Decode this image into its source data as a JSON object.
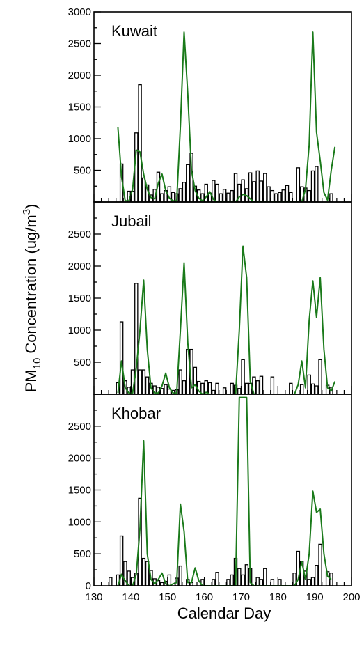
{
  "chart_data": {
    "type": "bar",
    "ylabel": {
      "main": "PM",
      "sub": "10",
      "rest": " Concentration  (ug/m",
      "sup": "3",
      "close": ")"
    },
    "xlabel": "Calendar Day",
    "xlim": [
      130,
      200
    ],
    "xticks": [
      "130",
      "140",
      "150",
      "160",
      "170",
      "180",
      "190",
      "200"
    ],
    "bar_color": "#000000",
    "line_color": "#1a7a1a",
    "panels": [
      {
        "title": "Kuwait",
        "ylim": [
          0,
          3000
        ],
        "yticks": [
          500,
          1000,
          1500,
          2000,
          2500,
          3000
        ],
        "bars": [
          {
            "x": 137.5,
            "y": 600
          },
          {
            "x": 139.5,
            "y": 170
          },
          {
            "x": 140.5,
            "y": 170
          },
          {
            "x": 141.5,
            "y": 1090
          },
          {
            "x": 142.5,
            "y": 1850
          },
          {
            "x": 143.5,
            "y": 380
          },
          {
            "x": 144.5,
            "y": 270
          },
          {
            "x": 145.5,
            "y": 110
          },
          {
            "x": 146.5,
            "y": 200
          },
          {
            "x": 147.5,
            "y": 470
          },
          {
            "x": 148.5,
            "y": 130
          },
          {
            "x": 149.5,
            "y": 180
          },
          {
            "x": 150.5,
            "y": 240
          },
          {
            "x": 151.5,
            "y": 150
          },
          {
            "x": 152.5,
            "y": 130
          },
          {
            "x": 153.5,
            "y": 210
          },
          {
            "x": 154.5,
            "y": 310
          },
          {
            "x": 155.5,
            "y": 590
          },
          {
            "x": 156.5,
            "y": 770
          },
          {
            "x": 157.5,
            "y": 250
          },
          {
            "x": 158.5,
            "y": 190
          },
          {
            "x": 159.5,
            "y": 130
          },
          {
            "x": 160.5,
            "y": 280
          },
          {
            "x": 161.5,
            "y": 140
          },
          {
            "x": 162.5,
            "y": 340
          },
          {
            "x": 163.5,
            "y": 280
          },
          {
            "x": 164.5,
            "y": 130
          },
          {
            "x": 165.5,
            "y": 200
          },
          {
            "x": 166.5,
            "y": 140
          },
          {
            "x": 167.5,
            "y": 180
          },
          {
            "x": 168.5,
            "y": 450
          },
          {
            "x": 169.5,
            "y": 280
          },
          {
            "x": 170.5,
            "y": 350
          },
          {
            "x": 171.5,
            "y": 210
          },
          {
            "x": 172.5,
            "y": 460
          },
          {
            "x": 173.5,
            "y": 320
          },
          {
            "x": 174.5,
            "y": 490
          },
          {
            "x": 175.5,
            "y": 330
          },
          {
            "x": 176.5,
            "y": 450
          },
          {
            "x": 177.5,
            "y": 240
          },
          {
            "x": 178.5,
            "y": 180
          },
          {
            "x": 179.5,
            "y": 130
          },
          {
            "x": 180.5,
            "y": 150
          },
          {
            "x": 181.5,
            "y": 190
          },
          {
            "x": 182.5,
            "y": 260
          },
          {
            "x": 183.5,
            "y": 150
          },
          {
            "x": 185.5,
            "y": 540
          },
          {
            "x": 186.5,
            "y": 240
          },
          {
            "x": 187.5,
            "y": 220
          },
          {
            "x": 188.5,
            "y": 180
          },
          {
            "x": 189.5,
            "y": 490
          },
          {
            "x": 190.5,
            "y": 560
          },
          {
            "x": 194.5,
            "y": 130
          }
        ],
        "line": {
          "x": [
            136.5,
            137.5,
            138.5,
            139.5,
            140.5,
            141.5,
            142.5,
            143.5,
            144.5,
            145.5,
            146.5,
            147.5,
            148.5,
            149.5,
            150.5,
            151.5,
            152.5,
            153.5,
            154.5,
            155.5,
            156.5,
            157.5,
            158.5,
            159.5,
            160.5,
            161.5,
            162.5,
            163.5,
            168.5,
            169.5,
            170.5,
            171.5,
            172.5,
            173.5,
            186.5,
            187.5,
            188.5,
            189.5,
            190.5,
            191.5,
            192.5,
            193.5,
            194.5,
            195.5
          ],
          "y": [
            1180,
            400,
            20,
            20,
            200,
            820,
            790,
            440,
            200,
            70,
            50,
            300,
            440,
            180,
            60,
            20,
            20,
            1200,
            2680,
            1700,
            500,
            180,
            60,
            20,
            80,
            160,
            40,
            0,
            0,
            80,
            120,
            100,
            50,
            0,
            0,
            200,
            900,
            2680,
            1100,
            650,
            150,
            30,
            500,
            870
          ]
        }
      },
      {
        "title": "Jubail",
        "ylim": [
          0,
          3000
        ],
        "yticks": [
          500,
          1000,
          1500,
          2000,
          2500
        ],
        "bars": [
          {
            "x": 136.5,
            "y": 180
          },
          {
            "x": 137.5,
            "y": 1130
          },
          {
            "x": 138.5,
            "y": 210
          },
          {
            "x": 139.5,
            "y": 110
          },
          {
            "x": 140.5,
            "y": 380
          },
          {
            "x": 141.5,
            "y": 1730
          },
          {
            "x": 142.5,
            "y": 380
          },
          {
            "x": 143.5,
            "y": 380
          },
          {
            "x": 144.5,
            "y": 270
          },
          {
            "x": 145.5,
            "y": 170
          },
          {
            "x": 146.5,
            "y": 130
          },
          {
            "x": 147.5,
            "y": 110
          },
          {
            "x": 148.5,
            "y": 90
          },
          {
            "x": 149.5,
            "y": 150
          },
          {
            "x": 150.5,
            "y": 80
          },
          {
            "x": 151.5,
            "y": 60
          },
          {
            "x": 152.5,
            "y": 70
          },
          {
            "x": 153.5,
            "y": 380
          },
          {
            "x": 154.5,
            "y": 210
          },
          {
            "x": 155.5,
            "y": 700
          },
          {
            "x": 156.5,
            "y": 700
          },
          {
            "x": 157.5,
            "y": 420
          },
          {
            "x": 158.5,
            "y": 200
          },
          {
            "x": 159.5,
            "y": 170
          },
          {
            "x": 160.5,
            "y": 210
          },
          {
            "x": 161.5,
            "y": 180
          },
          {
            "x": 162.5,
            "y": 60
          },
          {
            "x": 163.5,
            "y": 170
          },
          {
            "x": 165.5,
            "y": 100
          },
          {
            "x": 167.5,
            "y": 170
          },
          {
            "x": 168.5,
            "y": 140
          },
          {
            "x": 169.5,
            "y": 90
          },
          {
            "x": 170.5,
            "y": 540
          },
          {
            "x": 171.5,
            "y": 170
          },
          {
            "x": 172.5,
            "y": 170
          },
          {
            "x": 173.5,
            "y": 270
          },
          {
            "x": 174.5,
            "y": 210
          },
          {
            "x": 175.5,
            "y": 280
          },
          {
            "x": 178.5,
            "y": 270
          },
          {
            "x": 183.5,
            "y": 170
          },
          {
            "x": 186.5,
            "y": 150
          },
          {
            "x": 188.5,
            "y": 300
          },
          {
            "x": 189.5,
            "y": 160
          },
          {
            "x": 190.5,
            "y": 130
          },
          {
            "x": 191.5,
            "y": 540
          },
          {
            "x": 193.5,
            "y": 140
          },
          {
            "x": 194.5,
            "y": 110
          }
        ],
        "line": {
          "x": [
            136.5,
            137.5,
            138.5,
            139.5,
            140.5,
            141.5,
            142.5,
            143.5,
            144.5,
            145.5,
            146.5,
            147.5,
            148.5,
            149.5,
            150.5,
            151.5,
            152.5,
            153.5,
            154.5,
            155.5,
            156.5,
            157.5,
            158.5,
            159.5,
            160.5,
            161.5,
            168.5,
            169.5,
            170.5,
            171.5,
            172.5,
            173.5,
            184.5,
            185.5,
            186.5,
            187.5,
            188.5,
            189.5,
            190.5,
            191.5,
            192.5,
            193.5,
            194.5,
            195.5
          ],
          "y": [
            20,
            520,
            100,
            20,
            20,
            400,
            1000,
            1780,
            700,
            100,
            20,
            20,
            130,
            330,
            100,
            20,
            20,
            1000,
            2050,
            800,
            100,
            150,
            50,
            0,
            30,
            0,
            0,
            1000,
            2310,
            1820,
            200,
            0,
            0,
            150,
            520,
            100,
            1150,
            1770,
            1200,
            1820,
            700,
            100,
            50,
            200
          ]
        }
      },
      {
        "title": "Khobar",
        "ylim": [
          0,
          3000
        ],
        "yticks": [
          0,
          500,
          1000,
          1500,
          2000,
          2500
        ],
        "bars": [
          {
            "x": 134.5,
            "y": 130
          },
          {
            "x": 136.5,
            "y": 170
          },
          {
            "x": 137.5,
            "y": 780
          },
          {
            "x": 138.5,
            "y": 380
          },
          {
            "x": 139.5,
            "y": 230
          },
          {
            "x": 140.5,
            "y": 130
          },
          {
            "x": 141.5,
            "y": 200
          },
          {
            "x": 142.5,
            "y": 1370
          },
          {
            "x": 143.5,
            "y": 430
          },
          {
            "x": 144.5,
            "y": 380
          },
          {
            "x": 145.5,
            "y": 240
          },
          {
            "x": 146.5,
            "y": 110
          },
          {
            "x": 147.5,
            "y": 80
          },
          {
            "x": 148.5,
            "y": 50
          },
          {
            "x": 149.5,
            "y": 70
          },
          {
            "x": 150.5,
            "y": 170
          },
          {
            "x": 152.5,
            "y": 120
          },
          {
            "x": 153.5,
            "y": 310
          },
          {
            "x": 155.5,
            "y": 100
          },
          {
            "x": 156.5,
            "y": 50
          },
          {
            "x": 159.5,
            "y": 100
          },
          {
            "x": 162.5,
            "y": 100
          },
          {
            "x": 163.5,
            "y": 210
          },
          {
            "x": 166.5,
            "y": 100
          },
          {
            "x": 167.5,
            "y": 170
          },
          {
            "x": 168.5,
            "y": 430
          },
          {
            "x": 169.5,
            "y": 270
          },
          {
            "x": 170.5,
            "y": 170
          },
          {
            "x": 171.5,
            "y": 330
          },
          {
            "x": 172.5,
            "y": 270
          },
          {
            "x": 174.5,
            "y": 130
          },
          {
            "x": 175.5,
            "y": 100
          },
          {
            "x": 176.5,
            "y": 270
          },
          {
            "x": 178.5,
            "y": 100
          },
          {
            "x": 180.5,
            "y": 100
          },
          {
            "x": 184.5,
            "y": 200
          },
          {
            "x": 185.5,
            "y": 540
          },
          {
            "x": 186.5,
            "y": 380
          },
          {
            "x": 187.5,
            "y": 230
          },
          {
            "x": 188.5,
            "y": 100
          },
          {
            "x": 189.5,
            "y": 130
          },
          {
            "x": 190.5,
            "y": 320
          },
          {
            "x": 191.5,
            "y": 650
          },
          {
            "x": 193.5,
            "y": 220
          },
          {
            "x": 194.5,
            "y": 200
          }
        ],
        "line": {
          "x": [
            136.5,
            137.5,
            138.5,
            139.5,
            140.5,
            141.5,
            142.5,
            143.5,
            144.5,
            145.5,
            146.5,
            147.5,
            148.5,
            149.5,
            150.5,
            151.5,
            152.5,
            153.5,
            154.5,
            155.5,
            156.5,
            157.5,
            158.5,
            159.5,
            168.5,
            169.5,
            170.5,
            171.5,
            172.5,
            173.5,
            184.5,
            185.5,
            186.5,
            187.5,
            188.5,
            189.5,
            190.5,
            191.5,
            192.5,
            193.5,
            194.5
          ],
          "y": [
            0,
            180,
            80,
            0,
            0,
            180,
            900,
            2270,
            500,
            100,
            30,
            100,
            200,
            30,
            0,
            30,
            50,
            1280,
            850,
            50,
            50,
            280,
            80,
            0,
            0,
            2950,
            2950,
            2950,
            50,
            0,
            0,
            100,
            380,
            100,
            500,
            1480,
            1150,
            1200,
            500,
            150,
            100
          ]
        }
      }
    ]
  }
}
